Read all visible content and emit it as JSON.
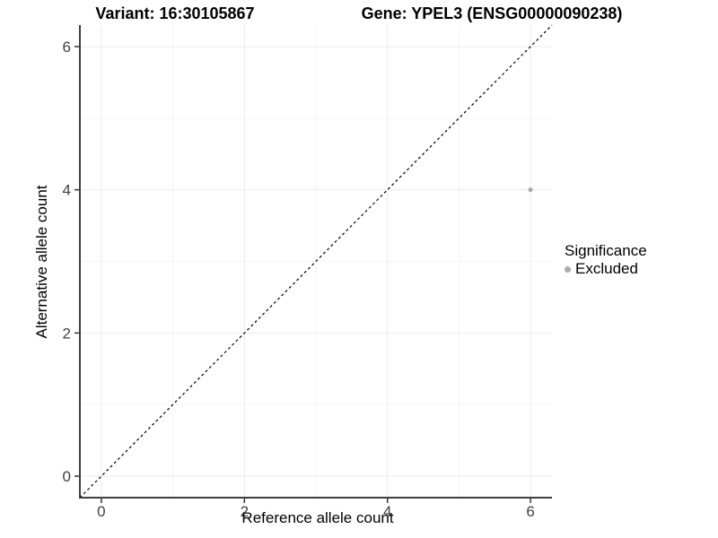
{
  "titles": {
    "variant": "Variant: 16:30105867",
    "gene": "Gene: YPEL3 (ENSG00000090238)"
  },
  "chart_data": {
    "type": "scatter",
    "xlabel": "Reference allele count",
    "ylabel": "Alternative allele count",
    "xlim": [
      -0.3,
      6.3
    ],
    "ylim": [
      -0.3,
      6.3
    ],
    "x_ticks": [
      0,
      2,
      4,
      6
    ],
    "y_ticks": [
      0,
      2,
      4,
      6
    ],
    "x_minor_ticks": [
      1,
      3,
      5
    ],
    "y_minor_ticks": [
      1,
      3,
      5
    ],
    "grid": true,
    "legend_position": "right",
    "series": [
      {
        "name": "Excluded",
        "color": "#aaaaaa",
        "points": [
          [
            6,
            4
          ]
        ]
      }
    ],
    "abline": {
      "slope": 1,
      "intercept": 0,
      "style": "dashed",
      "color": "#000000"
    },
    "legend": {
      "title": "Significance",
      "entries": [
        {
          "label": "Excluded",
          "color": "#aaaaaa"
        }
      ]
    }
  },
  "colors": {
    "background": "#ffffff",
    "grid_major": "#ebebeb",
    "grid_minor": "#f5f5f5",
    "axis_line": "#3f3f3f",
    "tick_mark": "#333333",
    "tick_label": "#404040",
    "point": "#aaaaaa"
  }
}
